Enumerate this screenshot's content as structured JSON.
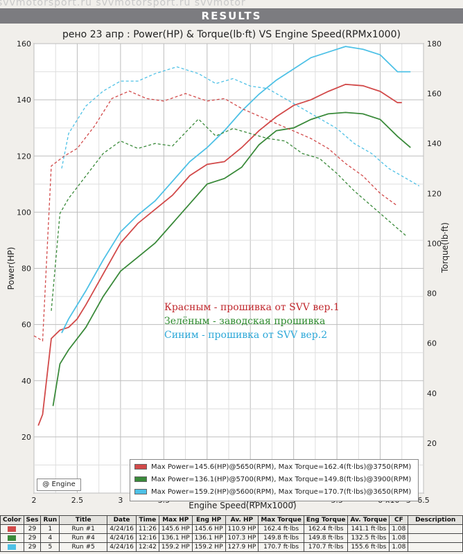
{
  "header": {
    "title": "RESULTS",
    "watermark": "svvmotorsport.ru svvmotorsport.ru svvmotor"
  },
  "chart_data": {
    "type": "line",
    "title": "рено 23 апр : Power(HP) & Torque(lb·ft) VS Engine Speed(RPMx1000)",
    "xlabel": "Engine Speed(RPMx1000)",
    "xunit": "x10^3",
    "ylabel_left": "Power(HP)",
    "ylabel_right": "Torque(lb·ft)",
    "xlim": [
      2,
      6.5
    ],
    "ylim_left": [
      0,
      160
    ],
    "ylim_right": [
      0,
      180
    ],
    "x_ticks": [
      "2",
      "2.5",
      "3",
      "3.5",
      "4",
      "4.5",
      "5",
      "5.5",
      "6",
      "6.5"
    ],
    "y_left_ticks": [
      "20",
      "40",
      "60",
      "80",
      "100",
      "120",
      "140",
      "160"
    ],
    "y_right_ticks": [
      "20",
      "40",
      "60",
      "80",
      "100",
      "120",
      "140",
      "160",
      "180"
    ],
    "grid": true,
    "annotations": [
      {
        "text": "Красным - прошивка от SVV вер.1",
        "color": "#c0282d"
      },
      {
        "text": "Зелёным - заводская прошивка",
        "color": "#2e8b2e"
      },
      {
        "text": "Синим - прошивка от SVV вер.2",
        "color": "#2aa7d8"
      }
    ],
    "series": [
      {
        "name": "Run #1",
        "color": "#d24a4a",
        "kind": "power",
        "x": [
          2.05,
          2.1,
          2.2,
          2.3,
          2.4,
          2.5,
          2.6,
          2.8,
          3.0,
          3.2,
          3.4,
          3.6,
          3.8,
          4.0,
          4.2,
          4.4,
          4.6,
          4.8,
          5.0,
          5.2,
          5.4,
          5.6,
          5.8,
          6.0,
          6.2,
          6.25
        ],
        "y": [
          24,
          28,
          55,
          58,
          59,
          62,
          67,
          78,
          89,
          96,
          101,
          106,
          113,
          117,
          118,
          123,
          129,
          134,
          138,
          140,
          143,
          145.5,
          145,
          143,
          139,
          139
        ]
      },
      {
        "name": "Run #4",
        "color": "#3a8a3a",
        "kind": "power",
        "x": [
          2.22,
          2.3,
          2.4,
          2.6,
          2.8,
          3.0,
          3.2,
          3.4,
          3.6,
          3.8,
          4.0,
          4.2,
          4.4,
          4.6,
          4.8,
          5.0,
          5.2,
          5.4,
          5.6,
          5.8,
          6.0,
          6.2,
          6.35
        ],
        "y": [
          31,
          46,
          51,
          59,
          70,
          79,
          84,
          89,
          96,
          103,
          110,
          112,
          116,
          124,
          129,
          130,
          133,
          135,
          135.5,
          135,
          133,
          127,
          123
        ]
      },
      {
        "name": "Run #5",
        "color": "#4ec1e6",
        "kind": "power",
        "x": [
          2.32,
          2.4,
          2.6,
          2.8,
          3.0,
          3.2,
          3.4,
          3.6,
          3.8,
          4.0,
          4.2,
          4.4,
          4.6,
          4.8,
          5.0,
          5.2,
          5.4,
          5.6,
          5.8,
          6.0,
          6.2,
          6.35
        ],
        "y": [
          57,
          62,
          72,
          83,
          93,
          99,
          104,
          111,
          118,
          123,
          129,
          136,
          142,
          147,
          151,
          155,
          157,
          159,
          158,
          156,
          150,
          150
        ]
      },
      {
        "name": "Run #1 torque",
        "color": "#d24a4a",
        "kind": "torque",
        "x": [
          2.0,
          2.1,
          2.2,
          2.35,
          2.5,
          2.7,
          2.9,
          3.1,
          3.3,
          3.5,
          3.75,
          4.0,
          4.2,
          4.4,
          4.6,
          4.8,
          5.0,
          5.2,
          5.4,
          5.6,
          5.8,
          6.0,
          6.2
        ],
        "y": [
          63,
          61,
          131,
          135,
          138,
          147,
          158,
          161,
          158,
          157,
          160,
          157,
          158,
          154,
          151,
          148,
          145,
          142,
          138,
          132,
          127,
          120,
          115
        ]
      },
      {
        "name": "Run #4 torque",
        "color": "#3a8a3a",
        "kind": "torque",
        "x": [
          2.2,
          2.3,
          2.4,
          2.6,
          2.8,
          3.0,
          3.2,
          3.4,
          3.6,
          3.9,
          4.1,
          4.3,
          4.5,
          4.7,
          4.9,
          5.1,
          5.3,
          5.5,
          5.7,
          5.9,
          6.1,
          6.3
        ],
        "y": [
          73,
          112,
          118,
          127,
          136,
          141,
          138,
          140,
          139,
          149.8,
          143,
          146,
          144,
          142,
          141,
          136,
          134,
          128,
          121,
          115,
          109,
          103
        ]
      },
      {
        "name": "Run #5 torque",
        "color": "#4ec1e6",
        "kind": "torque",
        "x": [
          2.32,
          2.4,
          2.6,
          2.8,
          3.0,
          3.2,
          3.4,
          3.65,
          3.9,
          4.1,
          4.3,
          4.5,
          4.7,
          4.9,
          5.1,
          5.3,
          5.5,
          5.7,
          5.9,
          6.1,
          6.3,
          6.45
        ],
        "y": [
          130,
          144,
          155,
          161,
          165,
          165,
          168,
          170.7,
          168,
          164,
          166,
          163,
          162,
          158,
          154,
          150,
          146,
          140,
          136,
          130,
          126,
          123
        ]
      }
    ]
  },
  "legend": [
    {
      "text": "Max Power=145.6(HP)@5650(RPM), Max Torque=162.4(ft·lbs)@3750(RPM)",
      "color": "#d24a4a"
    },
    {
      "text": "Max Power=136.1(HP)@5700(RPM), Max Torque=149.8(ft·lbs)@3900(RPM)",
      "color": "#3a8a3a"
    },
    {
      "text": "Max Power=159.2(HP)@5600(RPM), Max Torque=170.7(ft·lbs)@3650(RPM)",
      "color": "#4ec1e6"
    }
  ],
  "engine_tag": "@ Engine",
  "table": {
    "headers": [
      "Color",
      "Ses",
      "Run",
      "Title",
      "Date",
      "Time",
      "Max HP",
      "Eng HP",
      "Av. HP",
      "Max Torque",
      "Eng Torque",
      "Av. Torque",
      "CF",
      "Description"
    ],
    "rows": [
      {
        "color": "#d24a4a",
        "cells": [
          "29",
          "1",
          "Run #1",
          "4/24/16",
          "11:26",
          "145.6 HP",
          "145.6 HP",
          "110.9 HP",
          "162.4 ft·lbs",
          "162.4 ft·lbs",
          "141.1 ft·lbs",
          "1.08",
          ""
        ]
      },
      {
        "color": "#3a8a3a",
        "cells": [
          "29",
          "4",
          "Run #4",
          "4/24/16",
          "12:16",
          "136.1 HP",
          "136.1 HP",
          "107.3 HP",
          "149.8 ft·lbs",
          "149.8 ft·lbs",
          "132.5 ft·lbs",
          "1.08",
          ""
        ]
      },
      {
        "color": "#4ec1e6",
        "cells": [
          "29",
          "5",
          "Run #5",
          "4/24/16",
          "12:42",
          "159.2 HP",
          "159.2 HP",
          "127.9 HP",
          "170.7 ft·lbs",
          "170.7 ft·lbs",
          "155.6 ft·lbs",
          "1.08",
          ""
        ]
      }
    ]
  }
}
